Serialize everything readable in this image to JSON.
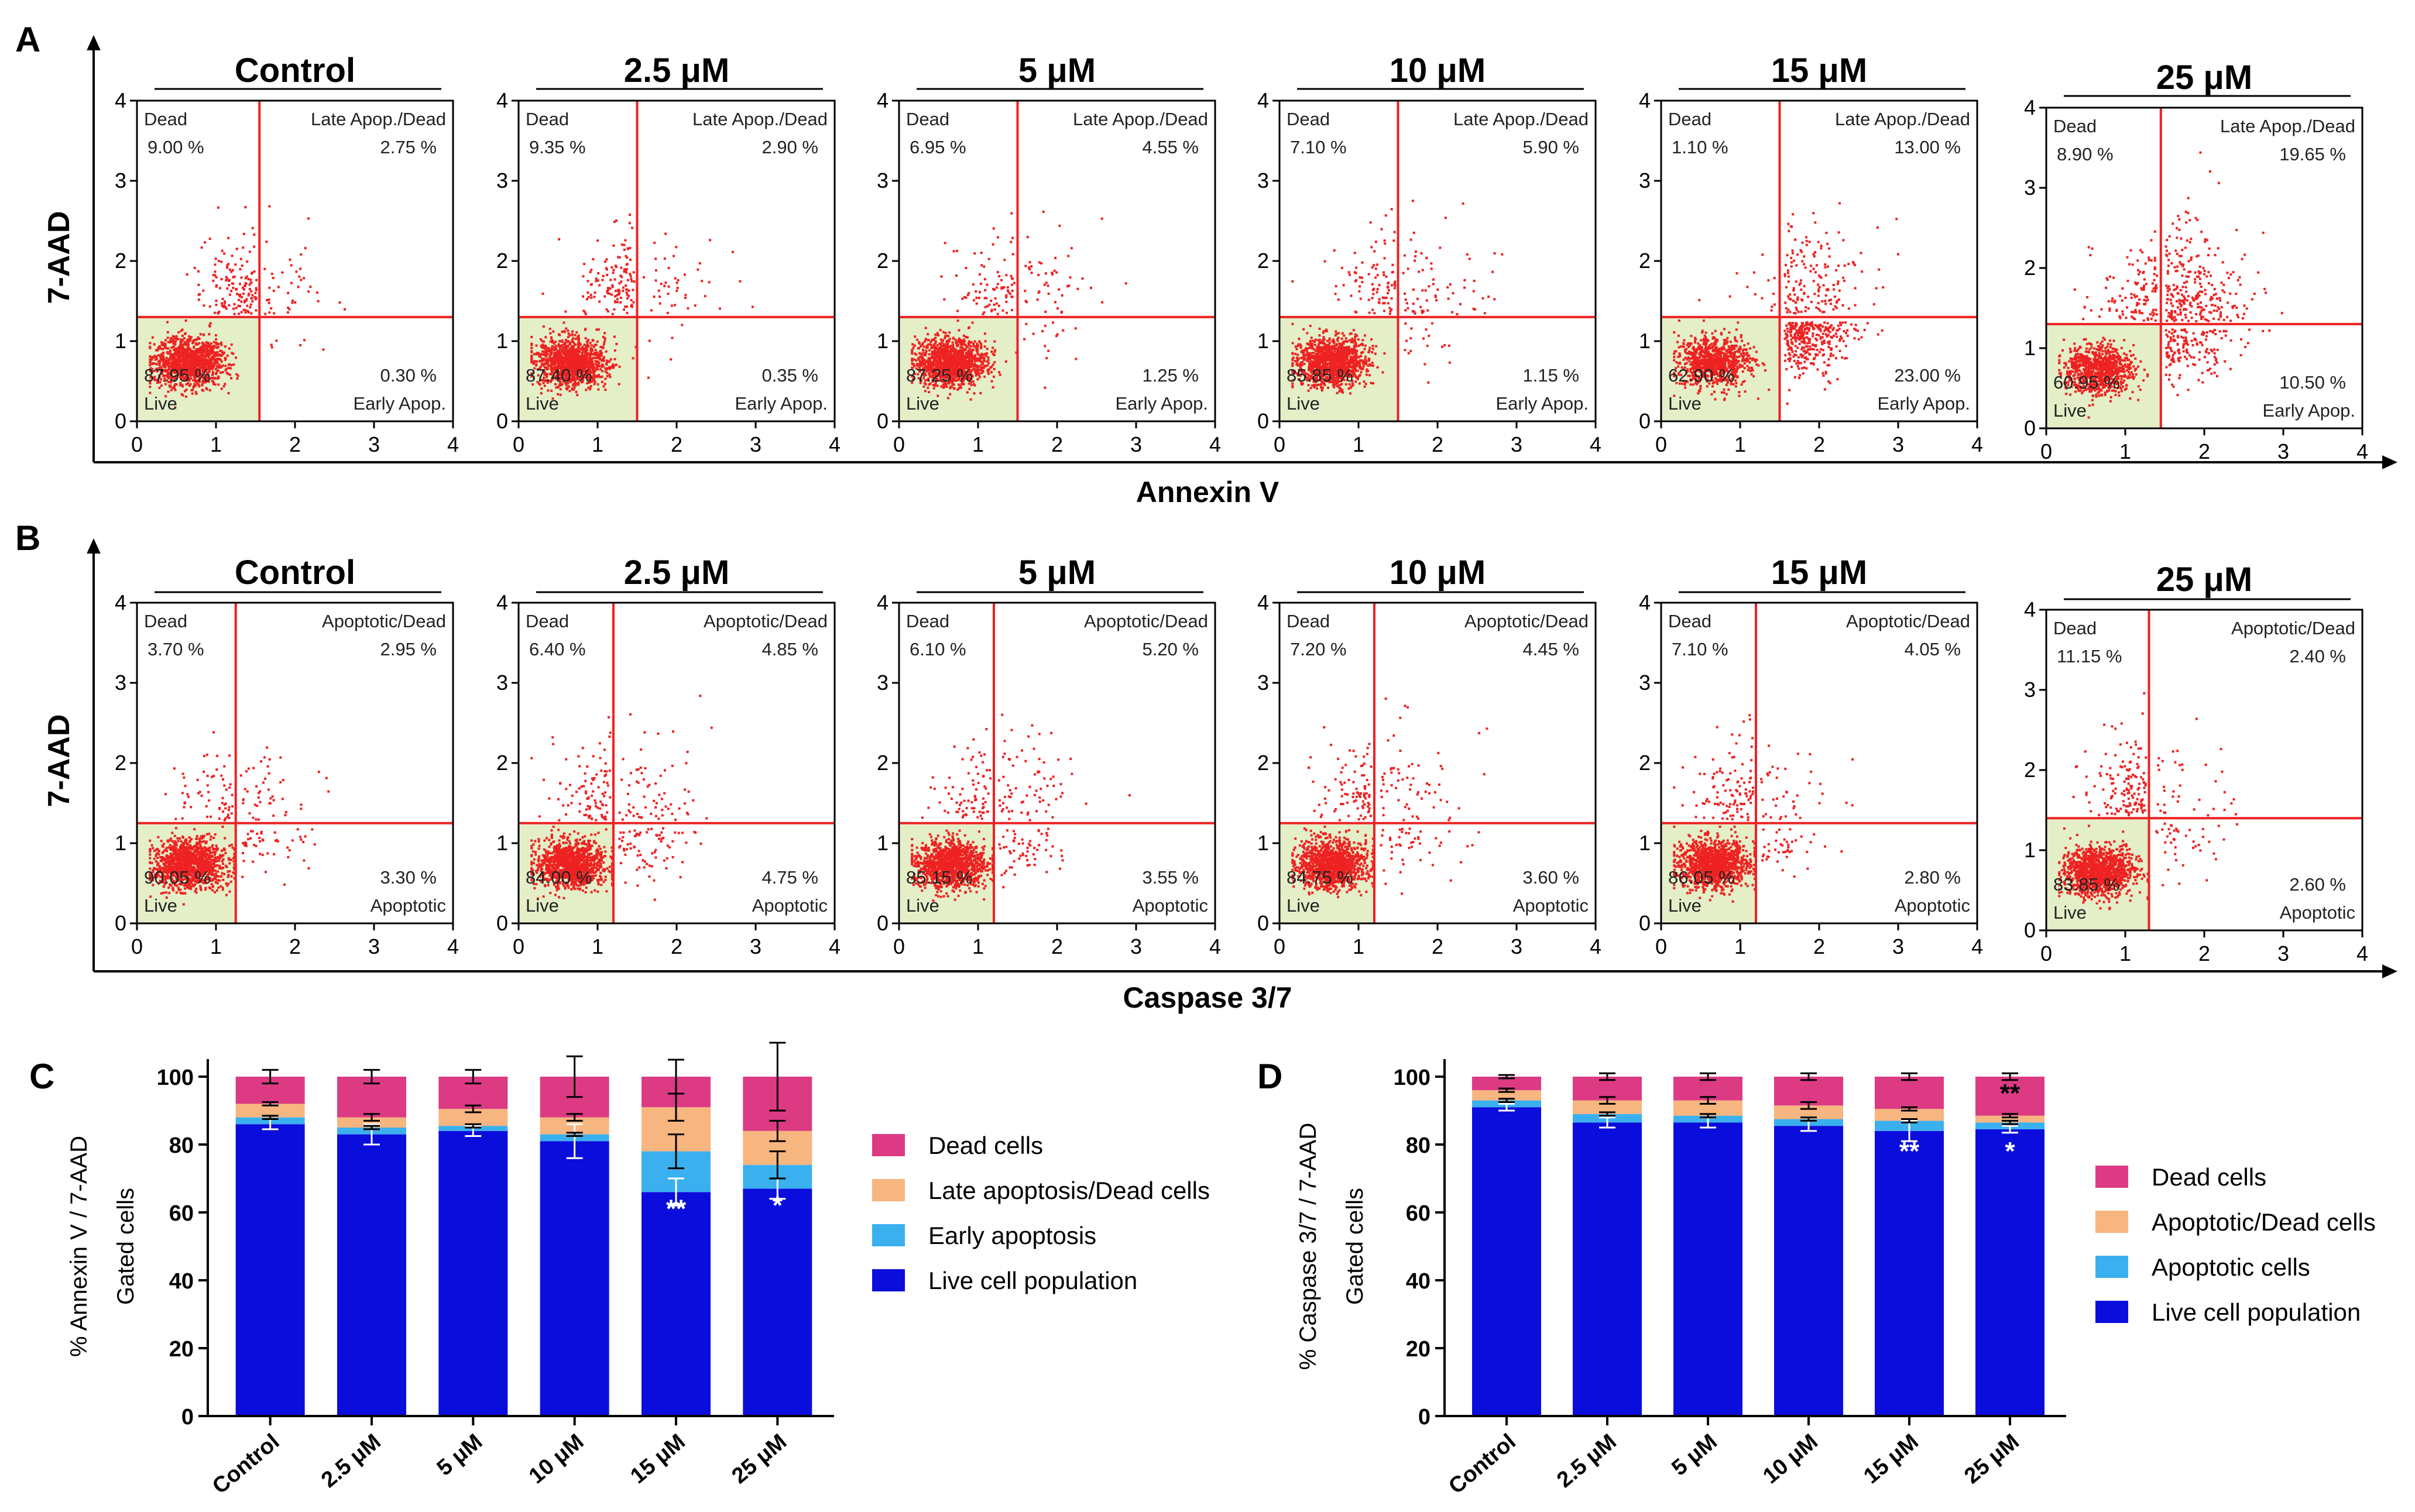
{
  "colors": {
    "dot": "#ee2222",
    "gate_line": "#ee2222",
    "live_fill": "#e4efc8",
    "dead_cells": "#dd3a84",
    "late_apoptosis": "#f7b57f",
    "early_apoptosis": "#3bb0ef",
    "live_population": "#0b0ddc",
    "axis": "#000000",
    "quadrant_text": "#222222"
  },
  "chart_data": [
    {
      "type": "scatter",
      "panel": "A",
      "xlabel": "Annexin V",
      "ylabel": "7-AAD",
      "xlim": [
        0,
        4
      ],
      "ylim": [
        0,
        4
      ],
      "xticks": [
        "0",
        "1",
        "2",
        "3",
        "4"
      ],
      "yticks": [
        "0",
        "1",
        "2",
        "3",
        "4"
      ],
      "quadrant_labels": {
        "ul": "Dead",
        "ur": "Late Apop./Dead",
        "ll": "Live",
        "lr": "Early Apop."
      },
      "plots": [
        {
          "title": "Control",
          "gate_x": 1.55,
          "gate_y": 1.3,
          "dead": "9.00 %",
          "late": "2.75 %",
          "live": "87.95 %",
          "early": "0.30 %"
        },
        {
          "title": "2.5 μM",
          "gate_x": 1.5,
          "gate_y": 1.3,
          "dead": "9.35 %",
          "late": "2.90 %",
          "live": "87.40 %",
          "early": "0.35 %"
        },
        {
          "title": "5 μM",
          "gate_x": 1.5,
          "gate_y": 1.3,
          "dead": "6.95 %",
          "late": "4.55 %",
          "live": "87.25 %",
          "early": "1.25 %"
        },
        {
          "title": "10 μM",
          "gate_x": 1.5,
          "gate_y": 1.3,
          "dead": "7.10 %",
          "late": "5.90 %",
          "live": "85.85 %",
          "early": "1.15 %"
        },
        {
          "title": "15 μM",
          "gate_x": 1.5,
          "gate_y": 1.3,
          "dead": "1.10 %",
          "late": "13.00 %",
          "live": "62.90 %",
          "early": "23.00 %"
        },
        {
          "title": "25 μM",
          "gate_x": 1.45,
          "gate_y": 1.3,
          "dead": "8.90 %",
          "late": "19.65 %",
          "live": "60.95 %",
          "early": "10.50 %"
        }
      ]
    },
    {
      "type": "scatter",
      "panel": "B",
      "xlabel": "Caspase 3/7",
      "ylabel": "7-AAD",
      "xlim": [
        0,
        4
      ],
      "ylim": [
        0,
        4
      ],
      "xticks": [
        "0",
        "1",
        "2",
        "3",
        "4"
      ],
      "yticks": [
        "0",
        "1",
        "2",
        "3",
        "4"
      ],
      "quadrant_labels": {
        "ul": "Dead",
        "ur": "Apoptotic/Dead",
        "ll": "Live",
        "lr": "Apoptotic"
      },
      "plots": [
        {
          "title": "Control",
          "gate_x": 1.25,
          "gate_y": 1.25,
          "dead": "3.70 %",
          "late": "2.95 %",
          "live": "90.05 %",
          "early": "3.30 %"
        },
        {
          "title": "2.5 μM",
          "gate_x": 1.2,
          "gate_y": 1.25,
          "dead": "6.40 %",
          "late": "4.85 %",
          "live": "84.00 %",
          "early": "4.75 %"
        },
        {
          "title": "5 μM",
          "gate_x": 1.2,
          "gate_y": 1.25,
          "dead": "6.10 %",
          "late": "5.20 %",
          "live": "85.15 %",
          "early": "3.55 %"
        },
        {
          "title": "10 μM",
          "gate_x": 1.2,
          "gate_y": 1.25,
          "dead": "7.20 %",
          "late": "4.45 %",
          "live": "84.75 %",
          "early": "3.60 %"
        },
        {
          "title": "15 μM",
          "gate_x": 1.2,
          "gate_y": 1.25,
          "dead": "7.10 %",
          "late": "4.05 %",
          "live": "86.05 %",
          "early": "2.80 %"
        },
        {
          "title": "25 μM",
          "gate_x": 1.3,
          "gate_y": 1.4,
          "dead": "11.15 %",
          "late": "2.40 %",
          "live": "83.85 %",
          "early": "2.60 %"
        }
      ]
    },
    {
      "type": "bar",
      "stacked": true,
      "panel": "C",
      "categories": [
        "Control",
        "2.5 μM",
        "5 μM",
        "10 μM",
        "15 μM",
        "25 μM"
      ],
      "ylabel_line1": "% Annexin V / 7-AAD",
      "ylabel_line2": "Gated cells",
      "ylim": [
        0,
        100
      ],
      "yticks": [
        "0",
        "20",
        "40",
        "60",
        "80",
        "100"
      ],
      "series": [
        {
          "name": "Live cell population",
          "values": [
            86,
            83,
            84,
            81,
            66,
            67
          ],
          "errors": [
            1.5,
            3,
            1.5,
            5,
            4,
            3
          ]
        },
        {
          "name": "Early apoptosis",
          "values": [
            2,
            2,
            1.5,
            2,
            12,
            7
          ],
          "errors": [
            0.5,
            0.5,
            0.5,
            0.5,
            5,
            4
          ]
        },
        {
          "name": "Late apoptosis/Dead cells",
          "values": [
            4,
            3,
            5,
            5,
            13,
            10
          ],
          "errors": [
            0.5,
            1,
            1,
            1,
            4,
            3
          ]
        },
        {
          "name": "Dead cells",
          "values": [
            8,
            12,
            9.5,
            12,
            9,
            16
          ],
          "errors": [
            2,
            2,
            2,
            6,
            5,
            10
          ]
        }
      ],
      "significance": [
        {
          "category": "15 μM",
          "label": "**",
          "at": 62
        },
        {
          "category": "25 μM",
          "label": "*",
          "at": 63
        }
      ],
      "legend_order": [
        "Dead cells",
        "Late apoptosis/Dead cells",
        "Early apoptosis",
        "Live cell population"
      ]
    },
    {
      "type": "bar",
      "stacked": true,
      "panel": "D",
      "categories": [
        "Control",
        "2.5 μM",
        "5 μM",
        "10 μM",
        "15 μM",
        "25 μM"
      ],
      "ylabel_line1": "% Caspase 3/7 / 7-AAD",
      "ylabel_line2": "Gated cells",
      "ylim": [
        0,
        100
      ],
      "yticks": [
        "0",
        "20",
        "40",
        "60",
        "80",
        "100"
      ],
      "series": [
        {
          "name": "Live cell population",
          "values": [
            91,
            86.5,
            86.5,
            85.5,
            84,
            84.5
          ],
          "errors": [
            1,
            1.5,
            1.5,
            1.5,
            3,
            1
          ]
        },
        {
          "name": "Apoptotic cells",
          "values": [
            2,
            2.5,
            2,
            2,
            3,
            2
          ],
          "errors": [
            0.5,
            0.5,
            0.5,
            0.5,
            0.5,
            0.5
          ]
        },
        {
          "name": "Apoptotic/Dead cells",
          "values": [
            3,
            4,
            4.5,
            4,
            3.5,
            2
          ],
          "errors": [
            0.5,
            1,
            1,
            1,
            0.5,
            0.5
          ]
        },
        {
          "name": "Dead cells",
          "values": [
            4,
            7,
            7,
            8.5,
            9.5,
            11.5
          ],
          "errors": [
            0.5,
            1,
            1,
            1,
            1,
            1
          ]
        }
      ],
      "significance": [
        {
          "category": "15 μM",
          "label": "**",
          "at": 79
        },
        {
          "category": "25 μM",
          "label": "*",
          "at": 79
        },
        {
          "category": "25 μM",
          "label": "**",
          "at": 96
        }
      ],
      "legend_order": [
        "Dead cells",
        "Apoptotic/Dead cells",
        "Apoptotic cells",
        "Live cell population"
      ]
    }
  ]
}
